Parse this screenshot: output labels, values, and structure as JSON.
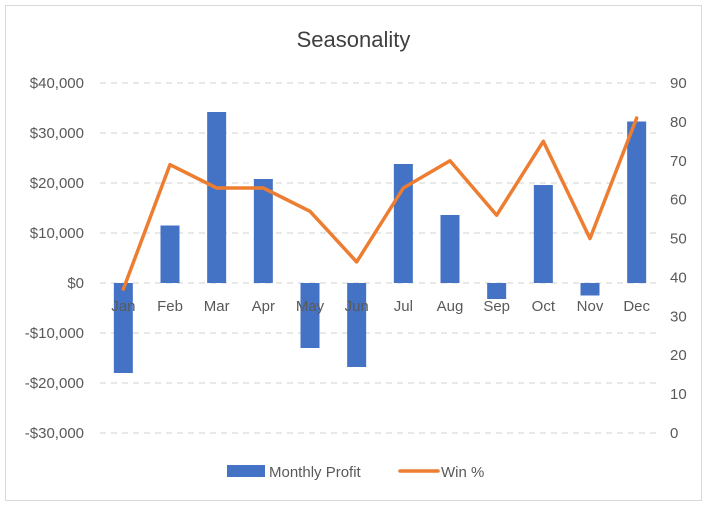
{
  "chart_data": {
    "type": "bar",
    "title": "Seasonality",
    "categories": [
      "Jan",
      "Feb",
      "Mar",
      "Apr",
      "May",
      "Jun",
      "Jul",
      "Aug",
      "Sep",
      "Oct",
      "Nov",
      "Dec"
    ],
    "series": [
      {
        "name": "Monthly Profit",
        "type": "bar",
        "axis": "left",
        "color": "#4472c4",
        "values": [
          -18000,
          11500,
          34200,
          20800,
          -13000,
          -16800,
          23800,
          13600,
          -3200,
          19600,
          -2500,
          32300
        ]
      },
      {
        "name": "Win %",
        "type": "line",
        "axis": "right",
        "color": "#ed7d31",
        "values": [
          37,
          69,
          63,
          63,
          57,
          44,
          63,
          70,
          56,
          75,
          50,
          81
        ]
      }
    ],
    "left_axis": {
      "ylim": [
        -30000,
        40000
      ],
      "ticks": [
        40000,
        30000,
        20000,
        10000,
        0,
        -10000,
        -20000,
        -30000
      ],
      "tick_labels": [
        "$40,000",
        "$30,000",
        "$20,000",
        "$10,000",
        "$0",
        "-$10,000",
        "-$20,000",
        "-$30,000"
      ]
    },
    "right_axis": {
      "ylim": [
        0,
        90
      ],
      "ticks": [
        90,
        80,
        70,
        60,
        50,
        40,
        30,
        20,
        10,
        0
      ],
      "tick_labels": [
        "90",
        "80",
        "70",
        "60",
        "50",
        "40",
        "30",
        "20",
        "10",
        "0"
      ]
    },
    "grid": "horizontal-dashed",
    "legend_position": "bottom"
  }
}
